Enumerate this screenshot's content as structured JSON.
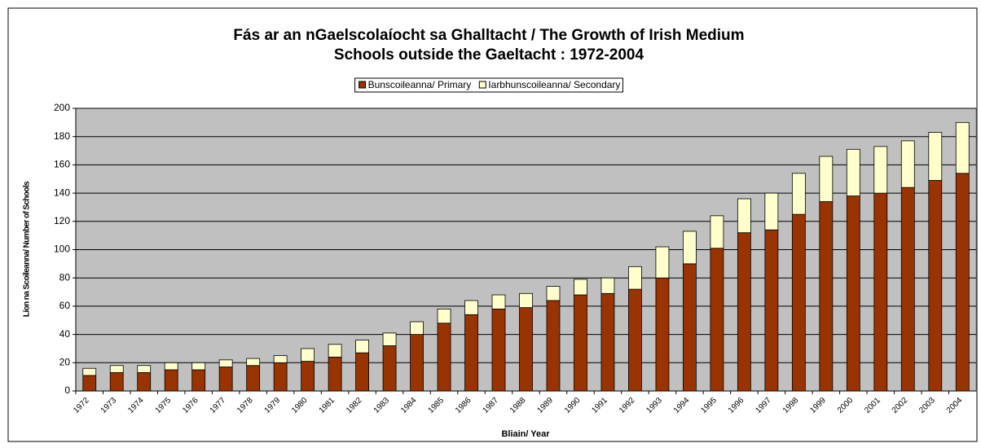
{
  "chart_data": {
    "type": "stacked_bar",
    "title": [
      "Fás ar an nGaelscolaíocht sa Ghalltacht / The Growth of Irish Medium",
      "Schools outside the Gaeltacht : 1972-2004"
    ],
    "x_label": "Bliain/ Year",
    "y_label": "Líon na Scoileanna/ Number of Schools",
    "categories": [
      "1972",
      "1973",
      "1974",
      "1975",
      "1976",
      "1977",
      "1978",
      "1979",
      "1980",
      "1981",
      "1982",
      "1983",
      "1984",
      "1985",
      "1986",
      "1987",
      "1988",
      "1989",
      "1990",
      "1991",
      "1992",
      "1993",
      "1994",
      "1995",
      "1996",
      "1997",
      "1998",
      "1999",
      "2000",
      "2001",
      "2002",
      "2003",
      "2004"
    ],
    "series": [
      {
        "name": "Bunscoileanna/ Primary",
        "color": "#993300",
        "values": [
          11,
          13,
          13,
          15,
          15,
          17,
          18,
          20,
          21,
          24,
          27,
          32,
          40,
          48,
          54,
          58,
          59,
          64,
          68,
          69,
          72,
          80,
          90,
          101,
          112,
          114,
          125,
          134,
          138,
          140,
          144,
          149,
          154
        ]
      },
      {
        "name": "Iarbhunscoileanna/ Secondary",
        "color": "#ffffcc",
        "values": [
          5,
          5,
          5,
          5,
          5,
          5,
          5,
          5,
          9,
          9,
          9,
          9,
          9,
          10,
          10,
          10,
          10,
          10,
          11,
          11,
          16,
          22,
          23,
          23,
          24,
          26,
          29,
          32,
          33,
          33,
          33,
          34,
          36
        ]
      }
    ],
    "ylim": [
      0,
      200
    ],
    "yticks": [
      0,
      20,
      40,
      60,
      80,
      100,
      120,
      140,
      160,
      180,
      200
    ],
    "grid": true,
    "legend": "top",
    "plot_background": "#c0c0c0"
  }
}
